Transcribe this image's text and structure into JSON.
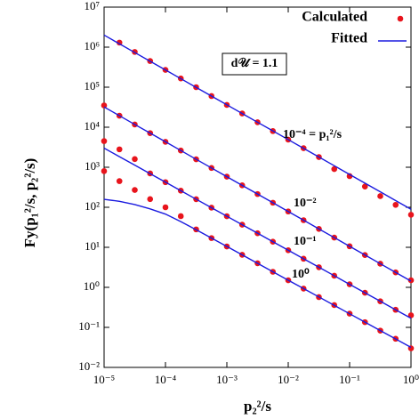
{
  "chart_data": {
    "type": "scatter",
    "xlabel": "p₂²/s",
    "ylabel": "Fy(p₁²/s, p₂²/s)",
    "log_x": true,
    "log_y": true,
    "x": [
      1e-05,
      1.778e-05,
      3.162e-05,
      5.623e-05,
      0.0001,
      0.0001778,
      0.0003162,
      0.0005623,
      0.001,
      0.001778,
      0.003162,
      0.005623,
      0.01,
      0.01778,
      0.03162,
      0.05623,
      0.1,
      0.1778,
      0.3162,
      0.5623,
      1
    ],
    "xlim": [
      1e-05,
      1
    ],
    "ylim": [
      0.01,
      10000000.0
    ],
    "xticks": [
      {
        "value": 1e-05,
        "label": "10⁻⁵"
      },
      {
        "value": 0.0001,
        "label": "10⁻⁴"
      },
      {
        "value": 0.001,
        "label": "10⁻³"
      },
      {
        "value": 0.01,
        "label": "10⁻²"
      },
      {
        "value": 0.1,
        "label": "10⁻¹"
      },
      {
        "value": 1,
        "label": "10⁰"
      }
    ],
    "yticks": [
      {
        "value": 0.01,
        "label": "10⁻²"
      },
      {
        "value": 0.1,
        "label": "10⁻¹"
      },
      {
        "value": 1,
        "label": "10⁰"
      },
      {
        "value": 10,
        "label": "10¹"
      },
      {
        "value": 100,
        "label": "10²"
      },
      {
        "value": 1000,
        "label": "10³"
      },
      {
        "value": 10000,
        "label": "10⁴"
      },
      {
        "value": 100000,
        "label": "10⁵"
      },
      {
        "value": 1000000,
        "label": "10⁶"
      },
      {
        "value": 10000000,
        "label": "10⁷"
      }
    ],
    "legend": "upper right",
    "series": [
      {
        "name": "Calculated",
        "color": "#e8141c",
        "mark": "dot",
        "curves": [
          [
            null,
            1300000.0,
            760000.0,
            450000.0,
            270000.0,
            165000.0,
            100000.0,
            60000.0,
            36000.0,
            22000.0,
            13300.0,
            8000.0,
            4900.0,
            3000.0,
            1800.0,
            900,
            600,
            330,
            190,
            115,
            65
          ],
          [
            35000.0,
            19400.0,
            11700.0,
            7120.0,
            4320.0,
            2620.0,
            1580.0,
            960,
            582,
            353,
            214,
            130,
            78.5,
            47.6,
            28.8,
            17.5,
            10.6,
            6.42,
            3.89,
            2.36,
            1.5
          ],
          [
            4500.0,
            2800.0,
            1600.0,
            700,
            424,
            260,
            159,
            97.6,
            59.8,
            36.7,
            22.5,
            13.8,
            8.45,
            5.18,
            3.18,
            1.95,
            1.19,
            0.732,
            0.449,
            0.275,
            0.2
          ],
          [
            800,
            450,
            270,
            160,
            100,
            60,
            28,
            17,
            10.5,
            6.5,
            4.0,
            2.45,
            1.5,
            0.93,
            0.57,
            0.36,
            0.22,
            0.135,
            0.083,
            0.052,
            0.03
          ]
        ]
      },
      {
        "name": "Fitted",
        "color": "#1a1adf",
        "mark": "line",
        "curves": [
          [
            2000000.0,
            1210000.0,
            733000.0,
            444000.0,
            269000.0,
            163000.0,
            98900.0,
            59900.0,
            36300.0,
            22000.0,
            13300.0,
            8080.0,
            4900.0,
            2970.0,
            1800.0,
            1090.0,
            661,
            400,
            243,
            147,
            89
          ],
          [
            32000.0,
            19400.0,
            11700.0,
            7120.0,
            4320.0,
            2620.0,
            1580.0,
            960,
            582,
            353,
            214,
            130,
            78.5,
            47.6,
            28.8,
            17.5,
            10.6,
            6.42,
            3.89,
            2.36,
            1.43
          ],
          [
            3000.0,
            1840.0,
            1130.0,
            691,
            424,
            260,
            159,
            97.6,
            59.8,
            36.7,
            22.5,
            13.8,
            8.45,
            5.18,
            3.18,
            1.95,
            1.19,
            0.732,
            0.449,
            0.275,
            0.169
          ],
          [
            158,
            141,
            117,
            91.2,
            67.6,
            43.7,
            27.5,
            17.0,
            10.5,
            6.46,
            3.98,
            2.45,
            1.51,
            0.933,
            0.575,
            0.355,
            0.219,
            0.135,
            0.0832,
            0.0513,
            0.0316
          ]
        ]
      }
    ],
    "curve_labels": [
      "10⁻⁴ = p₁²/s",
      "10⁻²",
      "10⁻¹",
      "10⁰"
    ],
    "annotation": "d𝒰 = 1.1"
  }
}
